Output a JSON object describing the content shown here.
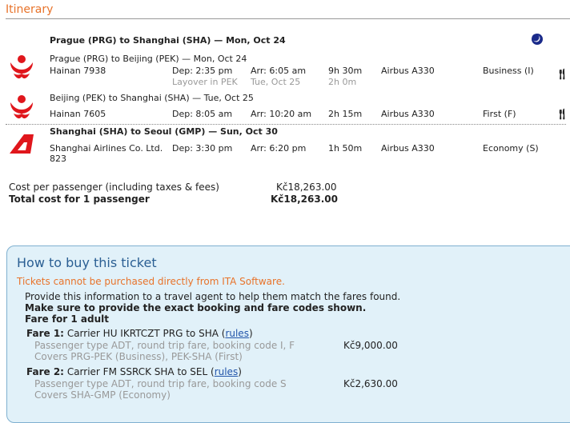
{
  "section_title": "Itinerary",
  "slices": [
    {
      "header": "Prague (PRG) to Shanghai (SHA) — Mon, Oct 24",
      "overnight_icon": "moon-icon",
      "legs": [
        {
          "route": "Prague (PRG) to Beijing (PEK) — Mon, Oct 24",
          "flight": "Hainan 7938",
          "dep": "Dep: 2:35 pm",
          "arr": "Arr: 6:05 am",
          "duration": "9h 30m",
          "aircraft": "Airbus A330",
          "cabin": "Business (I)",
          "meal_icon": "fork-knife-icon",
          "layover": {
            "label": "Layover in PEK",
            "date": "Tue, Oct 25",
            "duration": "2h 0m"
          }
        },
        {
          "route": "Beijing (PEK) to Shanghai (SHA) — Tue, Oct 25",
          "flight": "Hainan 7605",
          "dep": "Dep: 8:05 am",
          "arr": "Arr: 10:20 am",
          "duration": "2h 15m",
          "aircraft": "Airbus A330",
          "cabin": "First (F)",
          "meal_icon": "fork-knife-icon"
        }
      ]
    },
    {
      "header": "Shanghai (SHA) to Seoul (GMP) — Sun, Oct 30",
      "legs": [
        {
          "flight": "Shanghai Airlines Co. Ltd.",
          "flight_no": "823",
          "dep": "Dep: 3:30 pm",
          "arr": "Arr: 6:20 pm",
          "duration": "1h 50m",
          "aircraft": "Airbus A330",
          "cabin": "Economy (S)"
        }
      ]
    }
  ],
  "cost": {
    "per_passenger_label": "Cost per passenger (including taxes & fees)",
    "per_passenger": "Kč18,263.00",
    "total_label": "Total cost for 1 passenger",
    "total": "Kč18,263.00"
  },
  "buy": {
    "title": "How to buy this ticket",
    "warning": "Tickets cannot be purchased directly from ITA Software.",
    "info": "Provide this information to a travel agent to help them match the fares found.",
    "must": "Make sure to provide the exact booking and fare codes shown.",
    "fare_for": "Fare for 1 adult",
    "fares": [
      {
        "label": "Fare 1:",
        "desc": "Carrier HU IKRTCZT PRG to SHA",
        "rules": "rules",
        "line1": "Passenger type ADT, round trip fare, booking code I, F",
        "line2": "Covers PRG-PEK (Business), PEK-SHA (First)",
        "price": "Kč9,000.00"
      },
      {
        "label": "Fare 2:",
        "desc": "Carrier FM SSRCK SHA to SEL",
        "rules": "rules",
        "line1": "Passenger type ADT, round trip fare, booking code S",
        "line2": "Covers SHA-GMP (Economy)",
        "price": "Kč2,630.00"
      }
    ]
  },
  "colors": {
    "accent": "#e8732a",
    "box_bg": "#e1f1f9",
    "heading_blue": "#2b5f93",
    "hainan_red": "#e0161c"
  }
}
